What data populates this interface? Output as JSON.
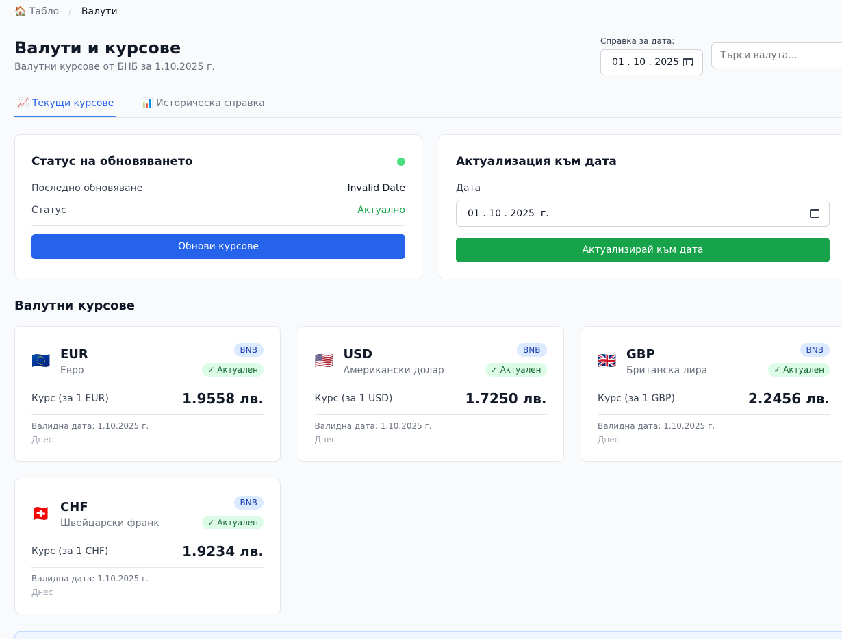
{
  "breadcrumb": {
    "home": "🏠 Табло",
    "separator": "/",
    "current": "Валути"
  },
  "header": {
    "title": "Валути и курсове",
    "subtitle": "Валутни курсове от БНБ за 1.10.2025 г.",
    "date_label": "Справка за дата:",
    "date_value": "01 . 10 . 2025  г.",
    "search_placeholder": "Търси валута..."
  },
  "tabs": [
    {
      "label": "📈 Текущи курсове",
      "active": true
    },
    {
      "label": "📊 Историческа справка",
      "active": false
    }
  ],
  "status_card": {
    "title": "Статус на обновяването",
    "status_dot_color": "#4ade80",
    "last_update_label": "Последно обновяване",
    "last_update_value": "Invalid Date",
    "status_label": "Статус",
    "status_value": "Актуално",
    "button": "Обнови курсове"
  },
  "update_card": {
    "title": "Актуализация към дата",
    "date_label": "Дата",
    "date_value": "01 . 10 . 2025  г.",
    "button": "Актуализирай към дата"
  },
  "section_title": "Валутни курсове",
  "currencies": [
    {
      "flag": "🇪🇺",
      "code": "EUR",
      "name": "Евро",
      "source": "BNB",
      "status": "✓ Актуален",
      "rate_label": "Курс (за 1 EUR)",
      "rate": "1.9558 лв.",
      "valid": "Валидна дата: 1.10.2025 г.",
      "when": "Днес"
    },
    {
      "flag": "🇺🇸",
      "code": "USD",
      "name": "Американски долар",
      "source": "BNB",
      "status": "✓ Актуален",
      "rate_label": "Курс (за 1 USD)",
      "rate": "1.7250 лв.",
      "valid": "Валидна дата: 1.10.2025 г.",
      "when": "Днес"
    },
    {
      "flag": "🇬🇧",
      "code": "GBP",
      "name": "Британска лира",
      "source": "BNB",
      "status": "✓ Актуален",
      "rate_label": "Курс (за 1 GBP)",
      "rate": "2.2456 лв.",
      "valid": "Валидна дата: 1.10.2025 г.",
      "when": "Днес"
    },
    {
      "flag": "🇨🇭",
      "code": "CHF",
      "name": "Швейцарски франк",
      "source": "BNB",
      "status": "✓ Актуален",
      "rate_label": "Курс (за 1 CHF)",
      "rate": "1.9234 лв.",
      "valid": "Валидна дата: 1.10.2025 г.",
      "when": "Днес"
    }
  ],
  "colors": {
    "primary": "#2563eb",
    "success": "#16a34a"
  }
}
